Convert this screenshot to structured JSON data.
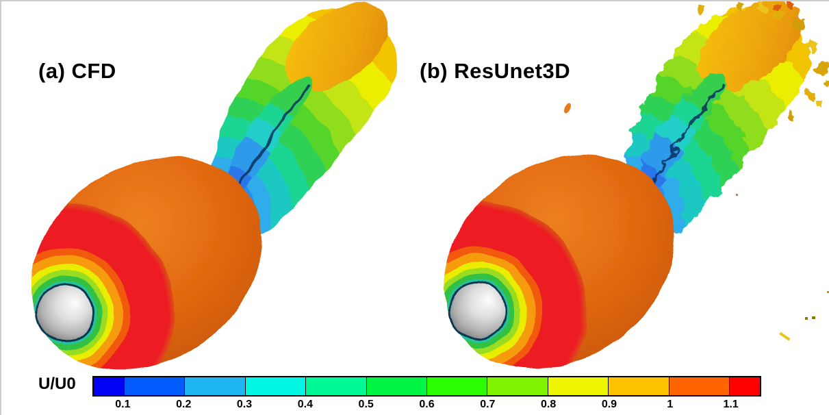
{
  "figure": {
    "panels": [
      {
        "label": "(a) CFD",
        "method": "CFD"
      },
      {
        "label": "(b) ResUnet3D",
        "method": "ResUnet3D"
      }
    ],
    "colorbar": {
      "label": "U/U0",
      "ticks": [
        "0.1",
        "0.2",
        "0.3",
        "0.4",
        "0.5",
        "0.6",
        "0.7",
        "0.8",
        "0.9",
        "1",
        "1.1"
      ],
      "segment_colors": [
        "#0202f5",
        "#015cfe",
        "#1fb4f2",
        "#01f5e3",
        "#00f896",
        "#00f544",
        "#2bfe02",
        "#7ff400",
        "#eff500",
        "#fec200",
        "#fe6400",
        "#fe0000"
      ]
    }
  }
}
